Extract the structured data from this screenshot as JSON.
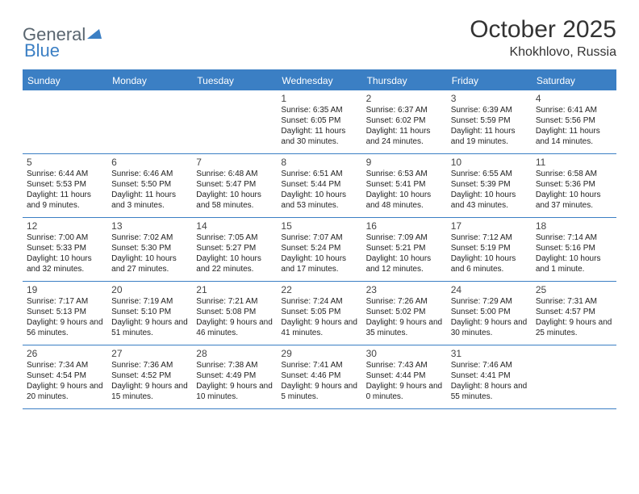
{
  "brand": {
    "part1": "General",
    "part2": "Blue"
  },
  "title": "October 2025",
  "location": "Khokhlovo, Russia",
  "colors": {
    "accent": "#3b7fc4",
    "text": "#333333",
    "logo_gray": "#5a6670",
    "background": "#ffffff"
  },
  "dayHeaders": [
    "Sunday",
    "Monday",
    "Tuesday",
    "Wednesday",
    "Thursday",
    "Friday",
    "Saturday"
  ],
  "startWeekday": 3,
  "days": [
    {
      "n": 1,
      "sr": "6:35 AM",
      "ss": "6:05 PM",
      "dl": "11 hours and 30 minutes."
    },
    {
      "n": 2,
      "sr": "6:37 AM",
      "ss": "6:02 PM",
      "dl": "11 hours and 24 minutes."
    },
    {
      "n": 3,
      "sr": "6:39 AM",
      "ss": "5:59 PM",
      "dl": "11 hours and 19 minutes."
    },
    {
      "n": 4,
      "sr": "6:41 AM",
      "ss": "5:56 PM",
      "dl": "11 hours and 14 minutes."
    },
    {
      "n": 5,
      "sr": "6:44 AM",
      "ss": "5:53 PM",
      "dl": "11 hours and 9 minutes."
    },
    {
      "n": 6,
      "sr": "6:46 AM",
      "ss": "5:50 PM",
      "dl": "11 hours and 3 minutes."
    },
    {
      "n": 7,
      "sr": "6:48 AM",
      "ss": "5:47 PM",
      "dl": "10 hours and 58 minutes."
    },
    {
      "n": 8,
      "sr": "6:51 AM",
      "ss": "5:44 PM",
      "dl": "10 hours and 53 minutes."
    },
    {
      "n": 9,
      "sr": "6:53 AM",
      "ss": "5:41 PM",
      "dl": "10 hours and 48 minutes."
    },
    {
      "n": 10,
      "sr": "6:55 AM",
      "ss": "5:39 PM",
      "dl": "10 hours and 43 minutes."
    },
    {
      "n": 11,
      "sr": "6:58 AM",
      "ss": "5:36 PM",
      "dl": "10 hours and 37 minutes."
    },
    {
      "n": 12,
      "sr": "7:00 AM",
      "ss": "5:33 PM",
      "dl": "10 hours and 32 minutes."
    },
    {
      "n": 13,
      "sr": "7:02 AM",
      "ss": "5:30 PM",
      "dl": "10 hours and 27 minutes."
    },
    {
      "n": 14,
      "sr": "7:05 AM",
      "ss": "5:27 PM",
      "dl": "10 hours and 22 minutes."
    },
    {
      "n": 15,
      "sr": "7:07 AM",
      "ss": "5:24 PM",
      "dl": "10 hours and 17 minutes."
    },
    {
      "n": 16,
      "sr": "7:09 AM",
      "ss": "5:21 PM",
      "dl": "10 hours and 12 minutes."
    },
    {
      "n": 17,
      "sr": "7:12 AM",
      "ss": "5:19 PM",
      "dl": "10 hours and 6 minutes."
    },
    {
      "n": 18,
      "sr": "7:14 AM",
      "ss": "5:16 PM",
      "dl": "10 hours and 1 minute."
    },
    {
      "n": 19,
      "sr": "7:17 AM",
      "ss": "5:13 PM",
      "dl": "9 hours and 56 minutes."
    },
    {
      "n": 20,
      "sr": "7:19 AM",
      "ss": "5:10 PM",
      "dl": "9 hours and 51 minutes."
    },
    {
      "n": 21,
      "sr": "7:21 AM",
      "ss": "5:08 PM",
      "dl": "9 hours and 46 minutes."
    },
    {
      "n": 22,
      "sr": "7:24 AM",
      "ss": "5:05 PM",
      "dl": "9 hours and 41 minutes."
    },
    {
      "n": 23,
      "sr": "7:26 AM",
      "ss": "5:02 PM",
      "dl": "9 hours and 35 minutes."
    },
    {
      "n": 24,
      "sr": "7:29 AM",
      "ss": "5:00 PM",
      "dl": "9 hours and 30 minutes."
    },
    {
      "n": 25,
      "sr": "7:31 AM",
      "ss": "4:57 PM",
      "dl": "9 hours and 25 minutes."
    },
    {
      "n": 26,
      "sr": "7:34 AM",
      "ss": "4:54 PM",
      "dl": "9 hours and 20 minutes."
    },
    {
      "n": 27,
      "sr": "7:36 AM",
      "ss": "4:52 PM",
      "dl": "9 hours and 15 minutes."
    },
    {
      "n": 28,
      "sr": "7:38 AM",
      "ss": "4:49 PM",
      "dl": "9 hours and 10 minutes."
    },
    {
      "n": 29,
      "sr": "7:41 AM",
      "ss": "4:46 PM",
      "dl": "9 hours and 5 minutes."
    },
    {
      "n": 30,
      "sr": "7:43 AM",
      "ss": "4:44 PM",
      "dl": "9 hours and 0 minutes."
    },
    {
      "n": 31,
      "sr": "7:46 AM",
      "ss": "4:41 PM",
      "dl": "8 hours and 55 minutes."
    }
  ],
  "labels": {
    "sunrise": "Sunrise:",
    "sunset": "Sunset:",
    "daylight": "Daylight:"
  }
}
